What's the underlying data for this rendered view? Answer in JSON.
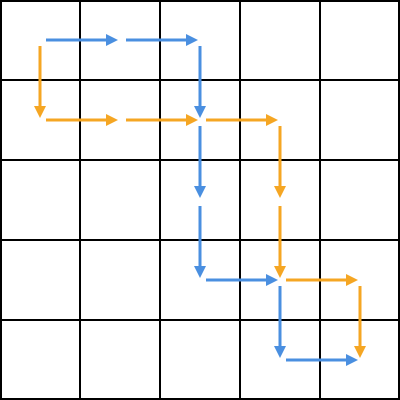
{
  "grid": {
    "rows": 5,
    "cols": 5,
    "line_color": "#000000"
  },
  "paths": [
    {
      "color": "#4A8FE0",
      "cells": [
        [
          0,
          0
        ],
        [
          0,
          1
        ],
        [
          0,
          2
        ],
        [
          1,
          2
        ],
        [
          2,
          2
        ],
        [
          3,
          2
        ],
        [
          3,
          3
        ],
        [
          4,
          3
        ],
        [
          4,
          4
        ]
      ]
    },
    {
      "color": "#F5A623",
      "cells": [
        [
          0,
          0
        ],
        [
          1,
          0
        ],
        [
          1,
          1
        ],
        [
          1,
          2
        ],
        [
          1,
          3
        ],
        [
          2,
          3
        ],
        [
          3,
          3
        ],
        [
          3,
          4
        ],
        [
          4,
          4
        ]
      ]
    }
  ]
}
